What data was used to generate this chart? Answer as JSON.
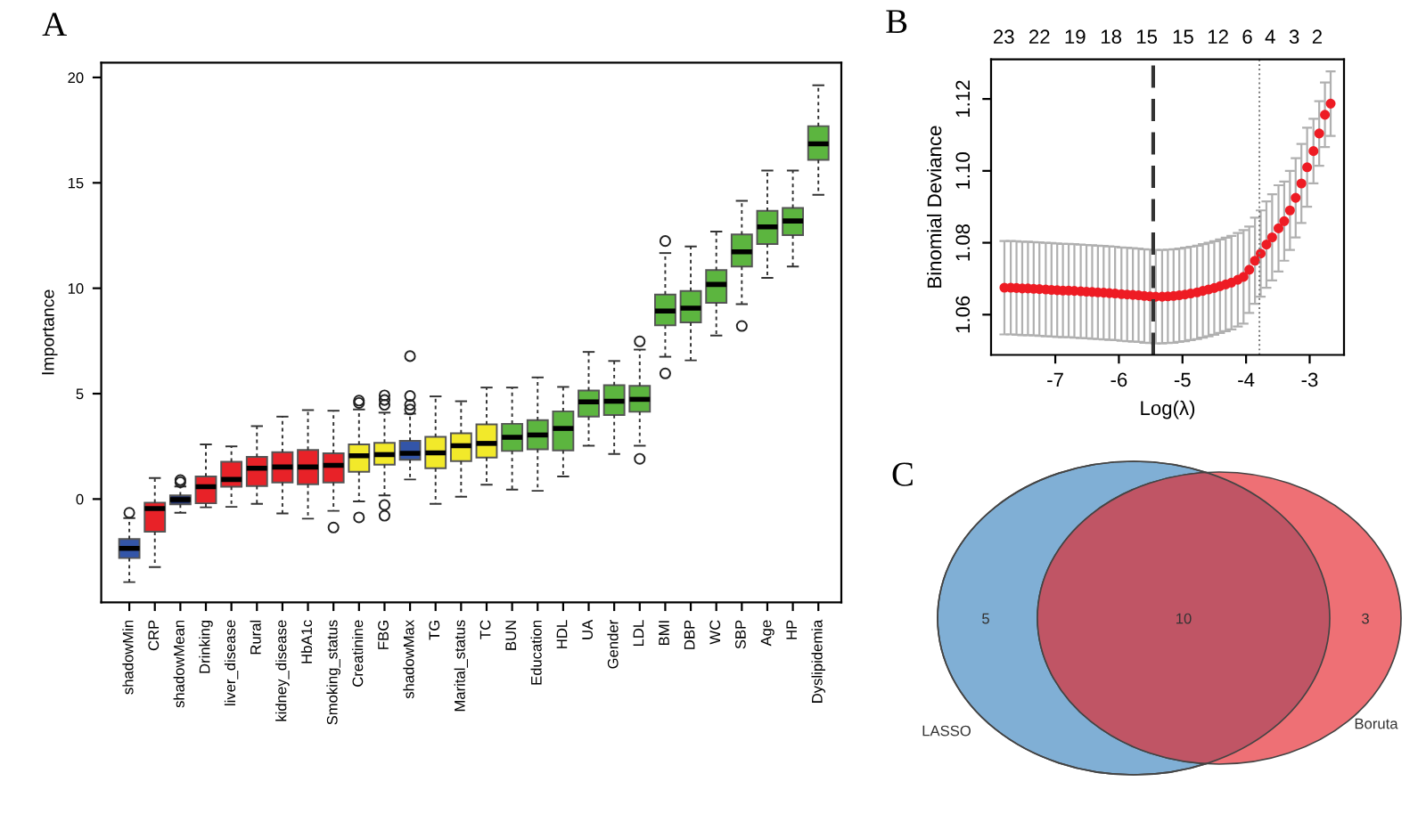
{
  "chart_data": [
    {
      "type": "box",
      "title": "A",
      "ylabel": "Importance",
      "categories": [
        "shadowMin",
        "CRP",
        "shadowMean",
        "Drinking",
        "liver_disease",
        "Rural",
        "kidney_disease",
        "HbA1c",
        "Smoking_status",
        "Creatinine",
        "FBG",
        "shadowMax",
        "TG",
        "Marital_status",
        "TC",
        "BUN",
        "Education",
        "HDL",
        "UA",
        "Gender",
        "LDL",
        "BMI",
        "DBP",
        "WC",
        "SBP",
        "Age",
        "HP",
        "Dyslipidemia"
      ],
      "colors": [
        "#3355a8",
        "#e82228",
        "#1e2f6a",
        "#e82228",
        "#e82228",
        "#e82228",
        "#e82228",
        "#e82228",
        "#e82228",
        "#f2e92a",
        "#f2e92a",
        "#3355a8",
        "#f2e92a",
        "#f2e92a",
        "#f2e92a",
        "#5cb53f",
        "#5cb53f",
        "#5cb53f",
        "#5cb53f",
        "#5cb53f",
        "#5cb53f",
        "#5cb53f",
        "#5cb53f",
        "#5cb53f",
        "#5cb53f",
        "#5cb53f",
        "#5cb53f",
        "#5cb53f"
      ],
      "boxes": [
        {
          "low": -3.94,
          "q1": -2.8,
          "median": -2.34,
          "q3": -1.9,
          "high": -0.9,
          "outliers": [
            -0.65
          ]
        },
        {
          "low": -3.23,
          "q1": -1.55,
          "median": -0.45,
          "q3": -0.17,
          "high": 1.0
        },
        {
          "low": -0.65,
          "q1": -0.25,
          "median": -0.03,
          "q3": 0.17,
          "high": 0.6,
          "outliers": [
            0.8,
            0.9
          ]
        },
        {
          "low": -0.39,
          "q1": -0.2,
          "median": 0.59,
          "q3": 1.07,
          "high": 2.59
        },
        {
          "low": -0.37,
          "q1": 0.59,
          "median": 0.93,
          "q3": 1.77,
          "high": 2.5
        },
        {
          "low": -0.23,
          "q1": 0.62,
          "median": 1.46,
          "q3": 2.0,
          "high": 3.46
        },
        {
          "low": -0.68,
          "q1": 0.79,
          "median": 1.52,
          "q3": 2.22,
          "high": 3.91
        },
        {
          "low": -0.93,
          "q1": 0.7,
          "median": 1.52,
          "q3": 2.33,
          "high": 4.22
        },
        {
          "low": -0.56,
          "q1": 0.79,
          "median": 1.6,
          "q3": 2.17,
          "high": 4.19,
          "outliers": [
            -1.35
          ]
        },
        {
          "low": -0.11,
          "q1": 1.29,
          "median": 2.05,
          "q3": 2.59,
          "high": 4.25,
          "outliers": [
            4.56,
            4.67,
            -0.87
          ]
        },
        {
          "low": 0.17,
          "q1": 1.63,
          "median": 2.11,
          "q3": 2.67,
          "high": 4.1,
          "outliers": [
            4.47,
            4.7,
            4.92,
            -0.28,
            -0.79
          ]
        },
        {
          "low": 0.93,
          "q1": 1.86,
          "median": 2.17,
          "q3": 2.76,
          "high": 4.05,
          "outliers": [
            4.25,
            4.47,
            4.89,
            6.78
          ]
        },
        {
          "low": -0.23,
          "q1": 1.46,
          "median": 2.19,
          "q3": 2.95,
          "high": 4.87
        },
        {
          "low": 0.11,
          "q1": 1.8,
          "median": 2.53,
          "q3": 3.12,
          "high": 4.64
        },
        {
          "low": 0.68,
          "q1": 1.97,
          "median": 2.64,
          "q3": 3.54,
          "high": 5.29
        },
        {
          "low": 0.45,
          "q1": 2.28,
          "median": 2.93,
          "q3": 3.57,
          "high": 5.29
        },
        {
          "low": 0.39,
          "q1": 2.36,
          "median": 3.04,
          "q3": 3.74,
          "high": 5.77
        },
        {
          "low": 1.07,
          "q1": 2.31,
          "median": 3.35,
          "q3": 4.16,
          "high": 5.32
        },
        {
          "low": 2.53,
          "q1": 3.91,
          "median": 4.61,
          "q3": 5.15,
          "high": 6.98
        },
        {
          "low": 2.14,
          "q1": 3.99,
          "median": 4.64,
          "q3": 5.4,
          "high": 6.55
        },
        {
          "low": 2.53,
          "q1": 4.14,
          "median": 4.73,
          "q3": 5.37,
          "high": 7.09,
          "outliers": [
            7.48,
            1.91
          ]
        },
        {
          "low": 6.75,
          "q1": 8.24,
          "median": 8.92,
          "q3": 9.7,
          "high": 11.67,
          "outliers": [
            12.24,
            5.96
          ]
        },
        {
          "low": 6.58,
          "q1": 8.38,
          "median": 9.06,
          "q3": 9.87,
          "high": 11.98
        },
        {
          "low": 7.76,
          "q1": 9.31,
          "median": 10.18,
          "q3": 10.86,
          "high": 12.69
        },
        {
          "low": 9.25,
          "q1": 11.03,
          "median": 11.73,
          "q3": 12.55,
          "high": 14.15,
          "outliers": [
            8.21
          ]
        },
        {
          "low": 10.49,
          "q1": 12.1,
          "median": 12.91,
          "q3": 13.67,
          "high": 15.58
        },
        {
          "low": 11.03,
          "q1": 12.52,
          "median": 13.19,
          "q3": 13.81,
          "high": 15.58
        },
        {
          "low": 14.43,
          "q1": 16.09,
          "median": 16.85,
          "q3": 17.69,
          "high": 19.63
        }
      ],
      "ylim": [
        -4.9,
        20.7
      ],
      "yticks": [
        0,
        5,
        10,
        15,
        20
      ]
    },
    {
      "type": "scatter",
      "title": "B",
      "xlabel": "Log(λ)",
      "ylabel": "Binomial Deviance",
      "marker": "circle",
      "x": [
        -7.8,
        -7.7,
        -7.61,
        -7.52,
        -7.43,
        -7.34,
        -7.25,
        -7.15,
        -7.06,
        -6.97,
        -6.88,
        -6.79,
        -6.7,
        -6.6,
        -6.51,
        -6.42,
        -6.33,
        -6.24,
        -6.15,
        -6.06,
        -5.96,
        -5.87,
        -5.78,
        -5.69,
        -5.6,
        -5.51,
        -5.42,
        -5.32,
        -5.23,
        -5.14,
        -5.05,
        -4.96,
        -4.87,
        -4.77,
        -4.68,
        -4.59,
        -4.5,
        -4.41,
        -4.32,
        -4.23,
        -4.13,
        -4.04,
        -3.95,
        -3.86,
        -3.77,
        -3.68,
        -3.59,
        -3.49,
        -3.4,
        -3.31,
        -3.22,
        -3.13,
        -3.04,
        -2.94,
        -2.85,
        -2.76,
        -2.67
      ],
      "series": [
        {
          "color": "#ee1c24",
          "values": [
            1.0675,
            1.0675,
            1.0674,
            1.0673,
            1.0673,
            1.0672,
            1.0671,
            1.067,
            1.0669,
            1.0668,
            1.0667,
            1.0667,
            1.0666,
            1.0665,
            1.0664,
            1.0663,
            1.0662,
            1.0661,
            1.066,
            1.0659,
            1.0657,
            1.0656,
            1.0655,
            1.0654,
            1.0652,
            1.0651,
            1.065,
            1.065,
            1.0651,
            1.0652,
            1.0654,
            1.0656,
            1.0659,
            1.0662,
            1.0666,
            1.067,
            1.0674,
            1.0679,
            1.0684,
            1.0689,
            1.0697,
            1.0705,
            1.0725,
            1.075,
            1.077,
            1.0795,
            1.0815,
            1.084,
            1.086,
            1.089,
            1.0925,
            1.0965,
            1.101,
            1.1055,
            1.1104,
            1.1156,
            1.1187
          ],
          "errors": [
            0.013,
            0.013,
            0.013,
            0.013,
            0.013,
            0.013,
            0.013,
            0.013,
            0.013,
            0.013,
            0.013,
            0.013,
            0.013,
            0.013,
            0.013,
            0.013,
            0.013,
            0.013,
            0.013,
            0.013,
            0.013,
            0.013,
            0.013,
            0.013,
            0.013,
            0.013,
            0.013,
            0.013,
            0.013,
            0.013,
            0.013,
            0.013,
            0.013,
            0.013,
            0.013,
            0.013,
            0.013,
            0.013,
            0.013,
            0.013,
            0.013,
            0.013,
            0.012,
            0.012,
            0.012,
            0.012,
            0.012,
            0.012,
            0.011,
            0.011,
            0.011,
            0.011,
            0.011,
            0.009,
            0.009,
            0.009,
            0.009
          ]
        }
      ],
      "xlim": [
        -8.01,
        -2.46
      ],
      "xticks": [
        -7,
        -6,
        -5,
        -4,
        -3
      ],
      "ylim": [
        1.0488,
        1.131
      ],
      "yticks": [
        1.06,
        1.08,
        {
          "value": 1.1,
          "label": "1.10"
        },
        1.12
      ],
      "annotations": [
        "23",
        "22",
        "19",
        "18",
        "15",
        "15",
        "12",
        "6",
        "4",
        "3",
        "2"
      ],
      "ref_lines": [
        {
          "axis": "x",
          "value": -5.46,
          "line_style": "dashed",
          "color": "#333333"
        },
        {
          "axis": "x",
          "value": -3.79,
          "line_style": "dotted",
          "color": "#777777"
        }
      ]
    },
    {
      "type": "other",
      "title": "C",
      "colors": [
        "#80afd5",
        "#c05565",
        "#ee7075"
      ],
      "annotations": [
        "5",
        "10",
        "3",
        "LASSO",
        "Boruta"
      ]
    }
  ]
}
